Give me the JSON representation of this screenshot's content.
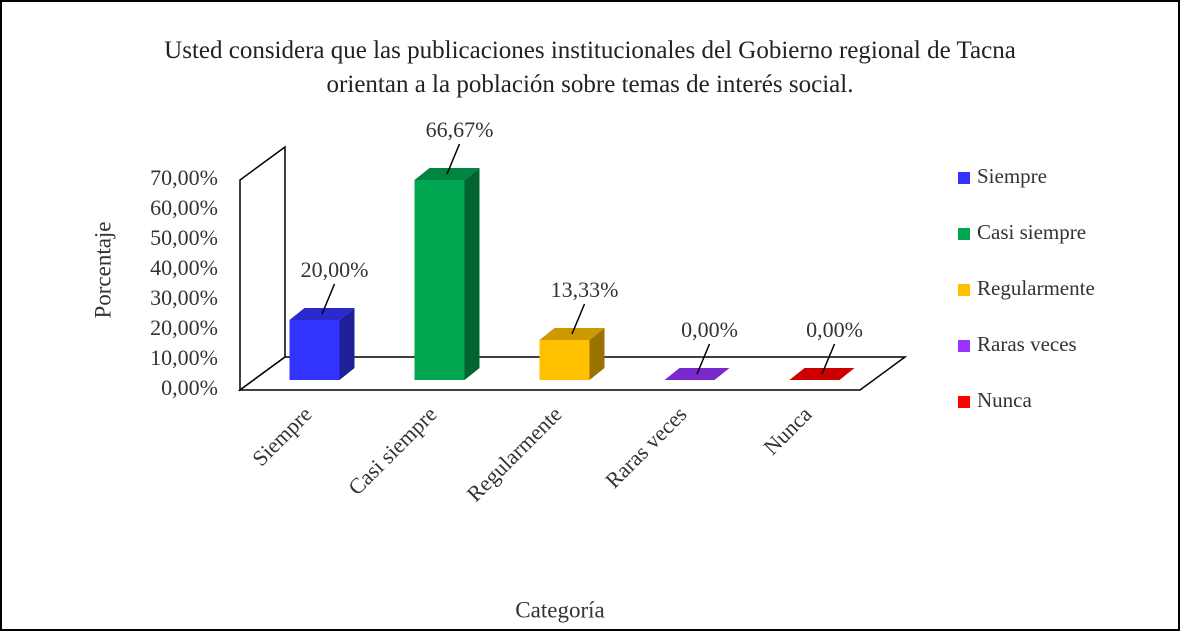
{
  "chart_data": {
    "type": "bar3d",
    "title": "Usted considera que las publicaciones institucionales del Gobierno regional de Tacna orientan a la población sobre temas de interés social.",
    "x_label": "Categoría",
    "y_label": "Porcentaje",
    "categories": [
      "Siempre",
      "Casi siempre",
      "Regularmente",
      "Raras veces",
      "Nunca"
    ],
    "values": [
      20,
      66.67,
      13.33,
      0,
      0
    ],
    "value_labels": [
      "20,00%",
      "66,67%",
      "13,33%",
      "0,00%",
      "0,00%"
    ],
    "colors": [
      "#3333ff",
      "#00a650",
      "#ffc000",
      "#9933ff",
      "#ff0000"
    ],
    "ylim": [
      0,
      70
    ],
    "yticks": [
      {
        "value": 0,
        "label": "0,00%"
      },
      {
        "value": 10,
        "label": "10,00%"
      },
      {
        "value": 20,
        "label": "20,00%"
      },
      {
        "value": 30,
        "label": "30,00%"
      },
      {
        "value": 40,
        "label": "40,00%"
      },
      {
        "value": 50,
        "label": "50,00%"
      },
      {
        "value": 60,
        "label": "60,00%"
      },
      {
        "value": 70,
        "label": "70,00%"
      }
    ],
    "legend": "right"
  }
}
